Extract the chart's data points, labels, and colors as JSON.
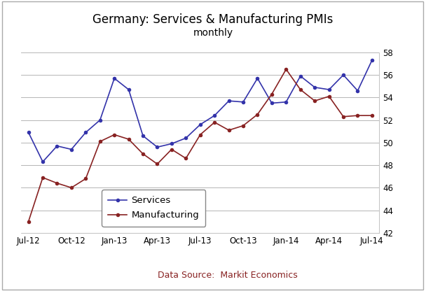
{
  "title": "Germany: Services & Manufacturing PMIs",
  "subtitle": "monthly",
  "datasource": "Data Source:  Markit Economics",
  "xtick_labels": [
    "Jul-12",
    "Oct-12",
    "Jan-13",
    "Apr-13",
    "Jul-13",
    "Oct-13",
    "Jan-14",
    "Apr-14",
    "Jul-14"
  ],
  "xtick_positions": [
    0,
    3,
    6,
    9,
    12,
    15,
    18,
    21,
    24
  ],
  "services": [
    50.9,
    48.3,
    49.7,
    49.4,
    50.9,
    52.0,
    55.7,
    54.7,
    50.6,
    49.6,
    49.9,
    50.4,
    51.6,
    52.4,
    53.7,
    53.6,
    55.7,
    53.5,
    53.6,
    55.9,
    54.9,
    54.7,
    56.0,
    54.6,
    57.3
  ],
  "manufacturing": [
    43.0,
    46.9,
    46.4,
    46.0,
    46.8,
    50.1,
    50.7,
    50.3,
    49.0,
    48.1,
    49.4,
    48.6,
    50.7,
    51.8,
    51.1,
    51.5,
    52.5,
    54.3,
    56.5,
    54.7,
    53.7,
    54.1,
    52.3,
    52.4,
    52.4
  ],
  "services_color": "#3333aa",
  "manufacturing_color": "#882222",
  "ylim": [
    42,
    58
  ],
  "yticks": [
    42,
    44,
    46,
    48,
    50,
    52,
    54,
    56,
    58
  ],
  "grid_color": "#aaaaaa",
  "background_color": "#ffffff",
  "title_fontsize": 12,
  "subtitle_fontsize": 10,
  "tick_fontsize": 8.5,
  "legend_fontsize": 9.5
}
